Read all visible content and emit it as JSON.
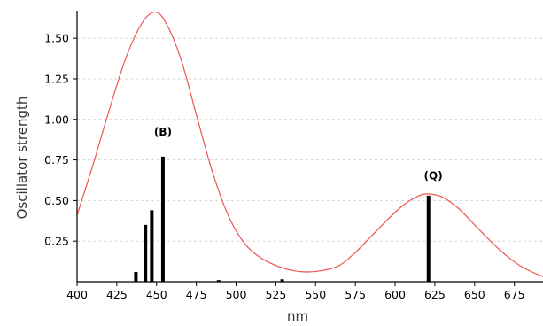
{
  "chart_data": {
    "type": "bar",
    "title": "",
    "xlabel": "nm",
    "ylabel": "Oscillator strength",
    "xlim": [
      400,
      693
    ],
    "ylim": [
      0,
      1.67
    ],
    "x_ticks": [
      "400",
      "425",
      "450",
      "475",
      "500",
      "525",
      "550",
      "575",
      "600",
      "625",
      "650",
      "675"
    ],
    "y_ticks": [
      "0.25",
      "0.50",
      "0.75",
      "1.00",
      "1.25",
      "1.50"
    ],
    "grid": "horizontal dashed",
    "bar_color": "#000000",
    "spectrum_color": "#ef5350",
    "bars": [
      {
        "x": 437,
        "value": 0.06
      },
      {
        "x": 443,
        "value": 0.35
      },
      {
        "x": 447,
        "value": 0.44
      },
      {
        "x": 454,
        "value": 0.77
      },
      {
        "x": 489,
        "value": 0.01
      },
      {
        "x": 529,
        "value": 0.015
      },
      {
        "x": 621,
        "value": 0.53
      }
    ],
    "spectrum": {
      "x": [
        400,
        410,
        420,
        430,
        440,
        448,
        455,
        465,
        475,
        485,
        495,
        505,
        515,
        525,
        535,
        545,
        555,
        565,
        575,
        585,
        595,
        605,
        615,
        622,
        630,
        640,
        650,
        660,
        670,
        680,
        693
      ],
      "y": [
        0.41,
        0.72,
        1.05,
        1.36,
        1.58,
        1.66,
        1.61,
        1.38,
        1.03,
        0.68,
        0.41,
        0.24,
        0.15,
        0.1,
        0.07,
        0.06,
        0.07,
        0.1,
        0.18,
        0.28,
        0.38,
        0.47,
        0.53,
        0.54,
        0.52,
        0.45,
        0.35,
        0.25,
        0.16,
        0.09,
        0.03
      ]
    },
    "annotations": [
      {
        "text": "(B)",
        "x": 454,
        "y": 0.9
      },
      {
        "text": "(Q)",
        "x": 624,
        "y": 0.63
      }
    ]
  }
}
